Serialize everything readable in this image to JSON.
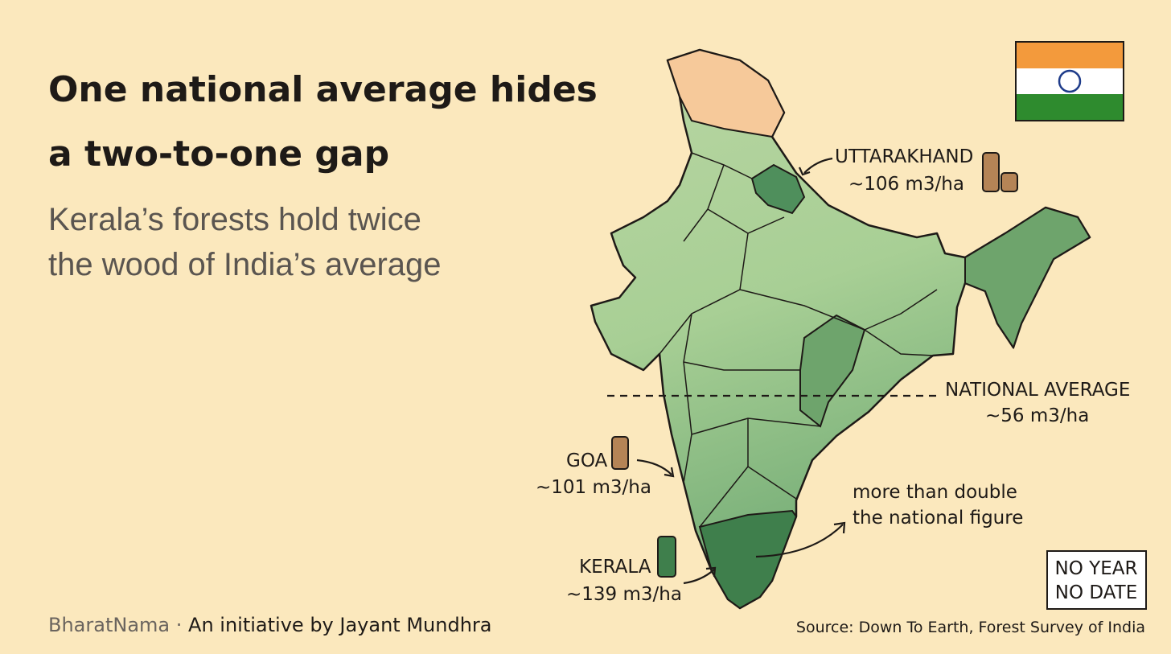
{
  "header": {
    "title_lines": [
      "One national average hides",
      "a two-to-one gap"
    ],
    "subtitle_lines": [
      "Kerala’s forests hold twice",
      "the wood of India’s average"
    ]
  },
  "annotations": [
    {
      "name": "UTTARAKHAND",
      "value": "~106 m3/ha"
    },
    {
      "name": "NATIONAL AVERAGE",
      "value": "~56 m3/ha"
    },
    {
      "name": "GOA",
      "value": "~101 m3/ha"
    },
    {
      "name": "KERALA",
      "value": "~139 m3/ha"
    }
  ],
  "note_lines": [
    "more than double",
    "the national figure"
  ],
  "stamp_lines": [
    "NO YEAR",
    "NO DATE"
  ],
  "footer": {
    "brand": "BharatNama",
    "separator": "·",
    "credit": "An initiative by Jayant Mundhra",
    "source": "Source: Down To Earth, Forest Survey of India"
  }
}
